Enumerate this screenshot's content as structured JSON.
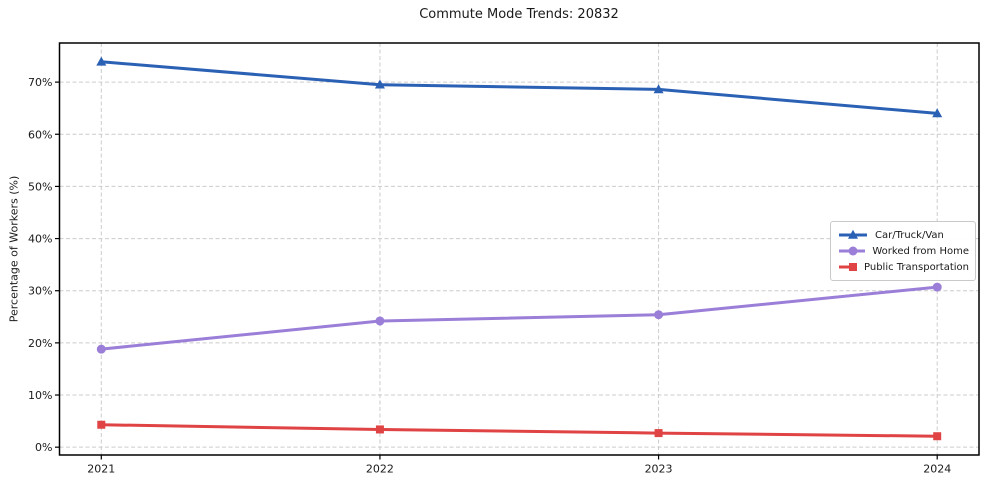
{
  "chart_data": {
    "type": "line",
    "title": "Commute Mode Trends: 20832",
    "xlabel": "",
    "ylabel": "Percentage of Workers (%)",
    "categories": [
      "2021",
      "2022",
      "2023",
      "2024"
    ],
    "series": [
      {
        "name": "Car/Truck/Van",
        "color": "#2b61b5",
        "marker": "triangle",
        "values": [
          73.9,
          69.5,
          68.6,
          64.0
        ]
      },
      {
        "name": "Worked from Home",
        "color": "#9b7ed8",
        "marker": "circle",
        "values": [
          18.8,
          24.2,
          25.4,
          30.7
        ]
      },
      {
        "name": "Public Transportation",
        "color": "#e04343",
        "marker": "square",
        "values": [
          4.3,
          3.4,
          2.7,
          2.1
        ]
      }
    ],
    "ylim": [
      -1.5,
      77.5
    ],
    "yticks": [
      0,
      10,
      20,
      30,
      40,
      50,
      60,
      70
    ],
    "ytick_suffix": "%",
    "grid": true,
    "grid_style": "dashed",
    "legend_position": "center right",
    "colors": {
      "grid": "#cccccc",
      "spine": "#000000",
      "text": "#1a1a1a"
    }
  }
}
